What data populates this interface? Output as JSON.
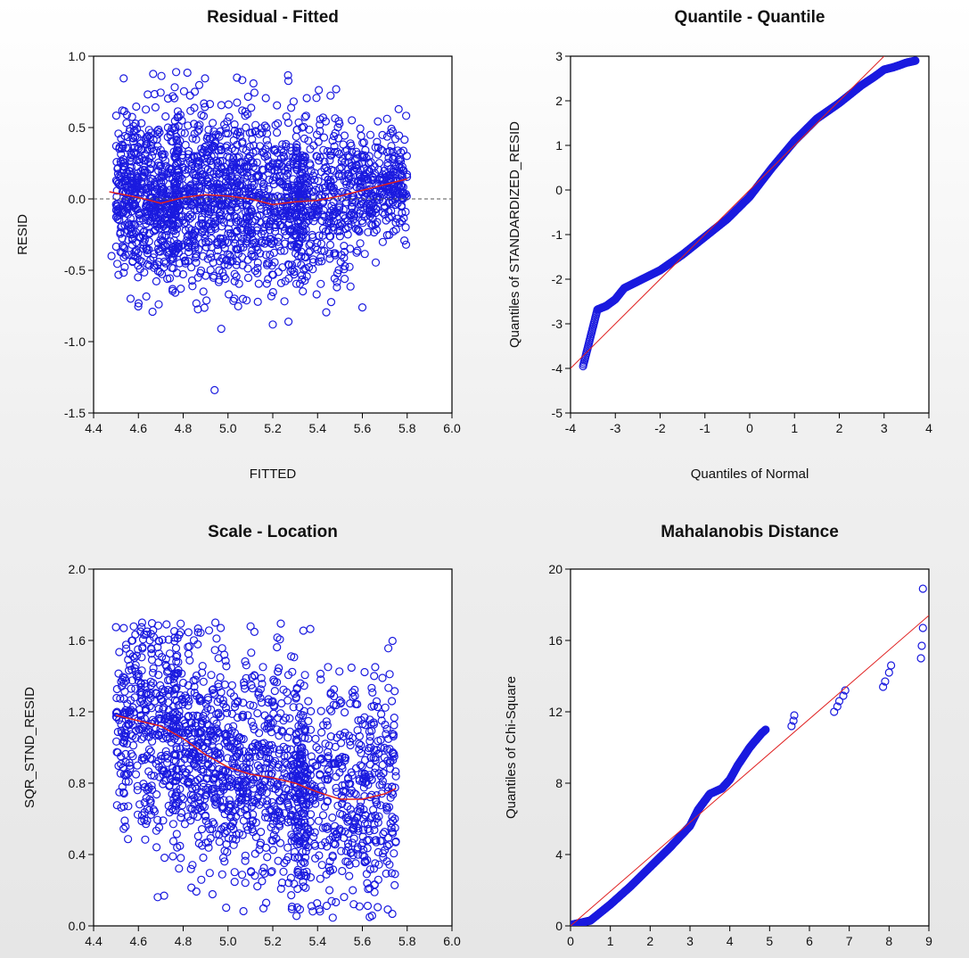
{
  "chart_data": [
    {
      "id": "resid-fitted",
      "type": "scatter",
      "title": "Residual - Fitted",
      "xlabel": "FITTED",
      "ylabel": "RESID",
      "xlim": [
        4.4,
        6.0
      ],
      "ylim": [
        -1.5,
        1.0
      ],
      "xticks": [
        "4.4",
        "4.6",
        "4.8",
        "5.0",
        "5.2",
        "5.4",
        "5.6",
        "5.8",
        "6.0"
      ],
      "yticks": [
        "-1.5",
        "-1.0",
        "-0.5",
        "0.0",
        "0.5",
        "1.0"
      ],
      "reference_line": {
        "y": 0.0,
        "style": "dashed"
      },
      "smoother": {
        "x": [
          4.47,
          4.6,
          4.7,
          4.8,
          4.9,
          5.0,
          5.1,
          5.2,
          5.3,
          5.4,
          5.5,
          5.6,
          5.7,
          5.8
        ],
        "y": [
          0.05,
          0.01,
          -0.03,
          0.01,
          0.03,
          0.02,
          0.0,
          -0.04,
          -0.02,
          -0.01,
          0.02,
          0.06,
          0.1,
          0.14
        ]
      },
      "outliers": {
        "x": [
          4.48,
          4.94,
          5.2,
          5.27,
          5.04,
          5.6,
          4.97
        ],
        "y": [
          -0.4,
          -1.34,
          -0.88,
          -0.86,
          0.85,
          -0.76,
          -0.91
        ]
      },
      "marker_color": "#1a1adf",
      "line_color": "#e02020"
    },
    {
      "id": "qq",
      "type": "scatter",
      "title": "Quantile - Quantile",
      "xlabel": "Quantiles of Normal",
      "ylabel": "Quantiles of STANDARDIZED_RESID",
      "xlim": [
        -4,
        4
      ],
      "ylim": [
        -5,
        3
      ],
      "xticks": [
        "-4",
        "-3",
        "-2",
        "-1",
        "0",
        "1",
        "2",
        "3",
        "4"
      ],
      "yticks": [
        "-5",
        "-4",
        "-3",
        "-2",
        "-1",
        "0",
        "1",
        "2",
        "3"
      ],
      "reference_line": {
        "x": [
          -4,
          3
        ],
        "y": [
          -4,
          3
        ]
      },
      "curve": {
        "x": [
          -3.72,
          -3.4,
          -3.2,
          -3.0,
          -2.8,
          -2.5,
          -2.0,
          -1.5,
          -1.0,
          -0.5,
          0.0,
          0.5,
          1.0,
          1.5,
          2.0,
          2.5,
          2.8,
          3.0,
          3.2,
          3.35,
          3.48,
          3.7
        ],
        "y": [
          -3.95,
          -2.68,
          -2.6,
          -2.45,
          -2.2,
          -2.05,
          -1.8,
          -1.45,
          -1.05,
          -0.65,
          -0.15,
          0.5,
          1.1,
          1.6,
          1.95,
          2.35,
          2.55,
          2.7,
          2.75,
          2.8,
          2.85,
          2.9
        ]
      },
      "marker_color": "#1a1adf",
      "line_color": "#e02020"
    },
    {
      "id": "scale-location",
      "type": "scatter",
      "title": "Scale - Location",
      "xlabel": "",
      "ylabel": "SQR_STND_RESID",
      "xlim": [
        4.4,
        6.0
      ],
      "ylim": [
        0.0,
        2.0
      ],
      "xticks": [
        "4.4",
        "4.6",
        "4.8",
        "5.0",
        "5.2",
        "5.4",
        "5.6",
        "5.8",
        "6.0"
      ],
      "yticks": [
        "0.0",
        "0.4",
        "0.8",
        "1.2",
        "1.6",
        "2.0"
      ],
      "smoother": {
        "x": [
          4.5,
          4.6,
          4.7,
          4.8,
          4.9,
          5.0,
          5.1,
          5.2,
          5.3,
          5.4,
          5.5,
          5.6,
          5.7,
          5.75
        ],
        "y": [
          1.18,
          1.15,
          1.12,
          1.05,
          0.96,
          0.89,
          0.85,
          0.83,
          0.8,
          0.75,
          0.71,
          0.71,
          0.74,
          0.77
        ]
      },
      "marker_color": "#1a1adf",
      "line_color": "#e02020"
    },
    {
      "id": "mahalanobis",
      "type": "scatter",
      "title": "Mahalanobis Distance",
      "xlabel": "",
      "ylabel": "Quantiles of Chi-Square",
      "xlim": [
        0,
        9
      ],
      "ylim": [
        0,
        20
      ],
      "xticks": [
        "0",
        "1",
        "2",
        "3",
        "4",
        "5",
        "6",
        "7",
        "8",
        "9"
      ],
      "yticks": [
        "0",
        "4",
        "8",
        "12",
        "16",
        "20"
      ],
      "reference_line": {
        "x": [
          0,
          9
        ],
        "y": [
          0,
          17.4
        ]
      },
      "curve": {
        "x": [
          0.0,
          0.5,
          1.0,
          1.5,
          2.0,
          2.5,
          3.0,
          3.2,
          3.5,
          3.8,
          4.0,
          4.2,
          4.5,
          4.8,
          4.9
        ],
        "y": [
          0.05,
          0.3,
          1.2,
          2.2,
          3.3,
          4.4,
          5.6,
          6.5,
          7.4,
          7.7,
          8.2,
          9.0,
          10.0,
          10.8,
          11.0
        ]
      },
      "extra_points": {
        "x": [
          5.55,
          5.6,
          5.62,
          6.62,
          6.7,
          6.75,
          6.85,
          6.9,
          7.85,
          7.9,
          8.0,
          8.05,
          8.8,
          8.82,
          8.85,
          8.85
        ],
        "y": [
          11.2,
          11.5,
          11.8,
          12.0,
          12.3,
          12.6,
          12.9,
          13.2,
          13.4,
          13.7,
          14.2,
          14.6,
          15.0,
          15.7,
          16.7,
          18.9
        ]
      },
      "marker_color": "#1a1adf",
      "line_color": "#e02020"
    }
  ]
}
